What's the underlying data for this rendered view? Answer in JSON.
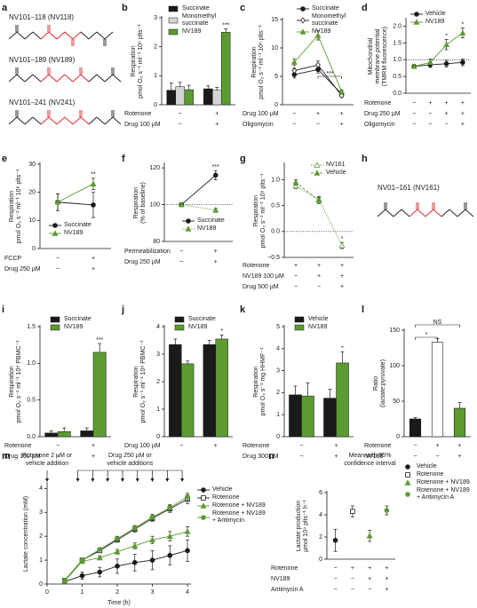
{
  "structures": [
    {
      "label": "a",
      "names": [
        "NV101–118 (NV118)",
        "NV101–189 (NV189)",
        "NV101–241 (NV241)"
      ]
    },
    {
      "label": "h",
      "names": [
        "NV01–161 (NV161)"
      ]
    }
  ],
  "chart_data": [
    {
      "label": "b",
      "type": "bar",
      "ylabel": [
        "Respiration",
        "pmol O₂ s⁻¹ ml⁻¹ 10⁸ plts⁻¹"
      ],
      "ylim": [
        0,
        3
      ],
      "yticks": [
        0,
        1,
        2,
        3
      ],
      "legend": "top-left",
      "conditions": [
        {
          "label": "Rotenone",
          "marks": [
            "−",
            "+"
          ]
        },
        {
          "label": "Drug 100 µM",
          "marks": [
            "−",
            "+"
          ]
        }
      ],
      "series": [
        {
          "name": "Succinate",
          "color": "#1a1a1a",
          "values": [
            0.5,
            0.55
          ],
          "errors": [
            0.25,
            0.1
          ]
        },
        {
          "name": "Monomethyl succinate",
          "color": "#d4d4d4",
          "values": [
            0.62,
            0.5
          ],
          "errors": [
            0.15,
            0.1
          ]
        },
        {
          "name": "NV189",
          "color": "#5b9b32",
          "values": [
            0.52,
            2.5
          ],
          "errors": [
            0.15,
            0.12
          ],
          "significance": [
            null,
            "***"
          ]
        }
      ]
    },
    {
      "label": "c",
      "type": "line",
      "ylabel": [
        "Respiration",
        "pmol O₂ s⁻¹ ml⁻¹ 10⁸ plts⁻¹"
      ],
      "ylim": [
        0,
        15
      ],
      "yticks": [
        0,
        5,
        10,
        15
      ],
      "legend": "top-right",
      "conditions": [
        {
          "label": "Drug 100 µM",
          "marks": [
            "−",
            "+",
            "+"
          ]
        },
        {
          "label": "Oligomycin",
          "marks": [
            "−",
            "−",
            "+"
          ]
        }
      ],
      "series": [
        {
          "name": "Succinate",
          "color": "#1a1a1a",
          "marker": "circle",
          "values": [
            5.3,
            6.2,
            1.9
          ],
          "errors": [
            0.6,
            0.6,
            0.3
          ]
        },
        {
          "name": "Monomethyl succinate",
          "color": "#1a1a1a",
          "marker": "diamond-open",
          "values": [
            6,
            7,
            1.6
          ],
          "errors": [
            0.5,
            0.7,
            0.3
          ]
        },
        {
          "name": "NV189",
          "color": "#5b9b32",
          "marker": "triangle",
          "values": [
            7.5,
            12.2,
            2.3
          ],
          "errors": [
            0.6,
            0.8,
            0.3
          ]
        }
      ],
      "brackets": [
        {
          "text": "***",
          "from": 1,
          "to": 2
        }
      ]
    },
    {
      "label": "d",
      "type": "line",
      "ylabel": [
        "Mitochondrial",
        "membrane potential",
        "(TMRM fluorescence)"
      ],
      "ylim": [
        0,
        2.2
      ],
      "yticks": [
        {
          "value": 0,
          "label": "0.0"
        },
        0.5,
        {
          "value": 1,
          "label": "1.0"
        },
        1.5,
        {
          "value": 2,
          "label": "2.0"
        }
      ],
      "refline": 1,
      "legend": "top-left",
      "conditions": [
        {
          "label": "Rotenone",
          "marks": [
            "−",
            "+",
            "+",
            "+"
          ]
        },
        {
          "label": "Drug 250 µM",
          "marks": [
            "−",
            "−",
            "+",
            "+"
          ]
        },
        {
          "label": "Oligomycin",
          "marks": [
            "−",
            "−",
            "−",
            "+"
          ]
        }
      ],
      "series": [
        {
          "name": "Vehicle",
          "color": "#1a1a1a",
          "marker": "circle",
          "values": [
            0.8,
            0.85,
            0.88,
            0.92
          ],
          "errors": [
            0.05,
            0.08,
            0.1,
            0.1
          ]
        },
        {
          "name": "NV189",
          "color": "#5b9b32",
          "marker": "triangle",
          "values": [
            0.8,
            0.92,
            1.45,
            1.8
          ],
          "errors": [
            0.05,
            0.1,
            0.15,
            0.15
          ],
          "significance": [
            null,
            null,
            "*",
            "*"
          ]
        }
      ]
    },
    {
      "label": "e",
      "type": "line",
      "ylabel": [
        "Respiration",
        "pmol O₂ s⁻¹ ml⁻¹ 10⁸ plts⁻¹"
      ],
      "ylim": [
        0,
        30
      ],
      "yticks": [
        0,
        10,
        20,
        30
      ],
      "legend": "bottom-left",
      "conditions": [
        {
          "label": "FCCP",
          "marks": [
            "−",
            "+"
          ]
        },
        {
          "label": "Drug 250 µM",
          "marks": [
            "−",
            "+"
          ]
        }
      ],
      "series": [
        {
          "name": "Succinate",
          "color": "#1a1a1a",
          "marker": "circle",
          "values": [
            16.5,
            15.5
          ],
          "errors": [
            3,
            4.5
          ]
        },
        {
          "name": "NV189",
          "color": "#5b9b32",
          "marker": "triangle",
          "values": [
            16.5,
            23
          ],
          "errors": [
            3,
            2
          ],
          "significance": [
            null,
            "**"
          ]
        }
      ]
    },
    {
      "label": "f",
      "type": "line",
      "ylabel": [
        "Respiration",
        "(% of baseline)"
      ],
      "ylim": [
        80,
        122
      ],
      "yticks": [
        80,
        100,
        120
      ],
      "refline": 100,
      "legend": "bottom-right",
      "conditions": [
        {
          "label": "Permeabilization",
          "marks": [
            "−",
            "+"
          ]
        },
        {
          "label": "Drug 250 µM",
          "marks": [
            "−",
            "+"
          ]
        }
      ],
      "series": [
        {
          "name": "Succinate",
          "color": "#1a1a1a",
          "marker": "circle",
          "values": [
            100,
            116
          ],
          "errors": [
            0,
            2.5
          ],
          "significance": [
            null,
            "***"
          ]
        },
        {
          "name": "NV189",
          "color": "#5b9b32",
          "marker": "triangle",
          "line": "dotted",
          "values": [
            100,
            97
          ],
          "errors": [
            0,
            1
          ]
        }
      ]
    },
    {
      "label": "g",
      "type": "line",
      "ylabel": [
        "Respiration",
        "pmol O₂ s⁻¹ ml⁻¹ 10⁸ plts⁻¹"
      ],
      "ylim": [
        -0.5,
        1.3
      ],
      "yticks": [
        {
          "value": -0.5,
          "label": "−0.5"
        },
        {
          "value": 0,
          "label": "0.0"
        },
        0.5,
        {
          "value": 1,
          "label": "1.0"
        }
      ],
      "refline": 0,
      "legend": "top-right",
      "conditions": [
        {
          "label": "Rotenone",
          "marks": [
            "+",
            "+",
            "+"
          ]
        },
        {
          "label": "NV189 100 µM",
          "marks": [
            "−",
            "+",
            "+"
          ]
        },
        {
          "label": "Drug 500 µM",
          "marks": [
            "−",
            "−",
            "+"
          ]
        }
      ],
      "series": [
        {
          "name": "NV161",
          "color": "#5b9b32",
          "marker": "triangle-open",
          "line": "dotted",
          "values": [
            0.88,
            0.62,
            -0.27
          ],
          "errors": [
            0.05,
            0.06,
            0.06
          ],
          "significance": [
            null,
            null,
            "*"
          ]
        },
        {
          "name": "Vehicle",
          "color": "#5b9b32",
          "marker": "triangle",
          "line": "dashed",
          "values": [
            0.95,
            0.6,
            null
          ],
          "errors": [
            0.05,
            0.06,
            null
          ]
        }
      ]
    },
    {
      "label": "i",
      "type": "bar",
      "ylabel": [
        "Respiration",
        "pmol O₂ s⁻¹ ml⁻¹ 10⁸ PBMC⁻¹"
      ],
      "ylim": [
        0,
        1.5
      ],
      "yticks": [
        {
          "value": 0,
          "label": "0.0"
        },
        0.5,
        {
          "value": 1,
          "label": "1.0"
        },
        1.5
      ],
      "legend": "top-left",
      "conditions": [
        {
          "label": "Rotenone",
          "marks": [
            "−",
            "+"
          ]
        },
        {
          "label": "Drug 100 µM",
          "marks": [
            "−",
            "+"
          ]
        }
      ],
      "series": [
        {
          "name": "Succinate",
          "color": "#1a1a1a",
          "values": [
            0.05,
            0.08
          ],
          "errors": [
            0.03,
            0.04
          ]
        },
        {
          "name": "NV189",
          "color": "#5b9b32",
          "values": [
            0.07,
            1.15
          ],
          "errors": [
            0.05,
            0.12
          ],
          "significance": [
            null,
            "***"
          ]
        }
      ]
    },
    {
      "label": "j",
      "type": "bar",
      "ylabel": [
        "Respiration",
        "pmol O₂ s⁻¹ ml⁻¹ 10⁸ PBMC⁻¹"
      ],
      "ylim": [
        0,
        4
      ],
      "yticks": [
        0,
        1,
        2,
        3,
        4
      ],
      "legend": "top-left",
      "conditions": [
        {
          "label": "Drug 100 µM",
          "marks": [
            "−",
            "+"
          ]
        }
      ],
      "series": [
        {
          "name": "Succinate",
          "color": "#1a1a1a",
          "values": [
            3.35,
            3.35
          ],
          "errors": [
            0.2,
            0.15
          ]
        },
        {
          "name": "NV189",
          "color": "#5b9b32",
          "values": [
            2.65,
            3.55
          ],
          "errors": [
            0.1,
            0.15
          ],
          "significance": [
            null,
            "*"
          ]
        }
      ]
    },
    {
      "label": "k",
      "type": "bar",
      "ylabel": [
        "Respiration",
        "pmol O₂ s⁻¹ mg HHMF⁻¹"
      ],
      "ylim": [
        0,
        5
      ],
      "yticks": [
        0,
        1,
        2,
        3,
        4,
        5
      ],
      "legend": "top-left",
      "conditions": [
        {
          "label": "Rotenone",
          "marks": [
            "−",
            "+"
          ]
        },
        {
          "label": "Drug 300 µM",
          "marks": [
            "−",
            "+"
          ]
        }
      ],
      "series": [
        {
          "name": "Vehicle",
          "color": "#1a1a1a",
          "values": [
            1.9,
            1.75
          ],
          "errors": [
            0.4,
            0.4
          ]
        },
        {
          "name": "NV189",
          "color": "#5b9b32",
          "values": [
            1.85,
            3.35
          ],
          "errors": [
            0.6,
            0.5
          ],
          "significance": [
            null,
            "*"
          ]
        }
      ]
    },
    {
      "label": "l",
      "type": "bar",
      "ylabel": [
        "Ratio",
        "(lactate:pyruvate)"
      ],
      "ylim": [
        0,
        150
      ],
      "yticks": [
        0,
        50,
        100,
        150
      ],
      "conditions": [
        {
          "label": "Rotenone",
          "marks": [
            "−",
            "+",
            "+"
          ]
        },
        {
          "label": "NV189",
          "marks": [
            "−",
            "−",
            "+"
          ]
        }
      ],
      "values": [
        25,
        133,
        40
      ],
      "errors": [
        2,
        5,
        8
      ],
      "colors": [
        "#1a1a1a",
        "#ffffff",
        "#5b9b32"
      ],
      "brackets": [
        {
          "text": "*",
          "from": 0,
          "to": 1
        },
        {
          "text": "NS",
          "from": 0,
          "to": 2
        }
      ]
    },
    {
      "label": "m",
      "type": "line",
      "ylabel": [
        "Lactate concentration (mM)"
      ],
      "xlabel": "Time (h)",
      "x": [
        0.5,
        1,
        1.5,
        2,
        2.5,
        3,
        3.5,
        4
      ],
      "xlim": [
        0,
        4.1
      ],
      "xticks": [
        0,
        1,
        2,
        3,
        4
      ],
      "ylim": [
        0,
        4.2
      ],
      "yticks": [
        0,
        1,
        2,
        3,
        4
      ],
      "legend": "right",
      "annotations": [
        {
          "text": [
            "Rotenone 2 µM or",
            "vehicle addition"
          ],
          "x": [
            0
          ]
        },
        {
          "text": [
            "Drug 250 µM or",
            "vehicle additions"
          ],
          "x": [
            0.875,
            1.3,
            1.725,
            2.15,
            2.575,
            3,
            3.425,
            3.85
          ]
        }
      ],
      "series": [
        {
          "name": "Vehicle",
          "color": "#1a1a1a",
          "marker": "circle",
          "values": [
            0.1,
            0.35,
            0.5,
            0.75,
            0.9,
            1.0,
            1.2,
            1.4
          ],
          "errors": [
            0.05,
            0.15,
            0.2,
            0.3,
            0.35,
            0.4,
            0.4,
            0.45
          ]
        },
        {
          "name": "Rotenone",
          "color": "#1a1a1a",
          "marker": "square-open",
          "values": [
            0.15,
            1.0,
            1.4,
            1.85,
            2.3,
            2.75,
            3.15,
            3.55
          ],
          "errors": [
            0.05,
            0.05,
            0.08,
            0.1,
            0.12,
            0.12,
            0.15,
            0.18
          ]
        },
        {
          "name": "Rotenone + NV189",
          "color": "#5b9b32",
          "marker": "triangle",
          "values": [
            0.12,
            0.95,
            1.1,
            1.35,
            1.6,
            1.85,
            2.0,
            2.2
          ],
          "errors": [
            0.05,
            0.05,
            0.08,
            0.1,
            0.12,
            0.15,
            0.2,
            0.2
          ]
        },
        {
          "name": "Rotenone + NV189 + Antimycin",
          "color": "#5b9b32",
          "marker": "circle",
          "values": [
            0.15,
            1.0,
            1.45,
            1.9,
            2.35,
            2.8,
            3.2,
            3.65
          ],
          "errors": [
            0.05,
            0.06,
            0.08,
            0.1,
            0.1,
            0.12,
            0.12,
            0.15
          ]
        }
      ]
    },
    {
      "label": "n",
      "type": "point",
      "title": [
        "Mean with 95%",
        "confidence interval"
      ],
      "ylabel": [
        "Lactate production",
        "µmol 10⁹ plts⁻¹ h⁻¹"
      ],
      "ylim": [
        0,
        6
      ],
      "yticks": [
        0,
        2,
        4,
        6
      ],
      "legend": "right",
      "conditions": [
        {
          "label": "Rotenone",
          "marks": [
            "−",
            "+",
            "+",
            "+"
          ]
        },
        {
          "label": "NV189",
          "marks": [
            "−",
            "−",
            "+",
            "+"
          ]
        },
        {
          "label": "Antimycin A",
          "marks": [
            "−",
            "−",
            "−",
            "+"
          ]
        }
      ],
      "series": [
        {
          "name": "Vehicle",
          "color": "#1a1a1a",
          "marker": "circle",
          "values": [
            1.7,
            null,
            null,
            null
          ],
          "errors": [
            1.0,
            null,
            null,
            null
          ]
        },
        {
          "name": "Rotenone",
          "color": "#1a1a1a",
          "marker": "square-open",
          "values": [
            null,
            4.3,
            null,
            null
          ],
          "errors": [
            null,
            0.5,
            null,
            null
          ]
        },
        {
          "name": "Rotenone + NV189",
          "color": "#5b9b32",
          "marker": "triangle",
          "values": [
            null,
            null,
            2.1,
            null
          ],
          "errors": [
            null,
            null,
            0.5,
            null
          ]
        },
        {
          "name": "Rotenone + NV189 + Antimycin A",
          "color": "#5b9b32",
          "marker": "circle",
          "values": [
            null,
            null,
            null,
            4.4
          ],
          "errors": [
            null,
            null,
            null,
            0.4
          ]
        }
      ]
    }
  ]
}
